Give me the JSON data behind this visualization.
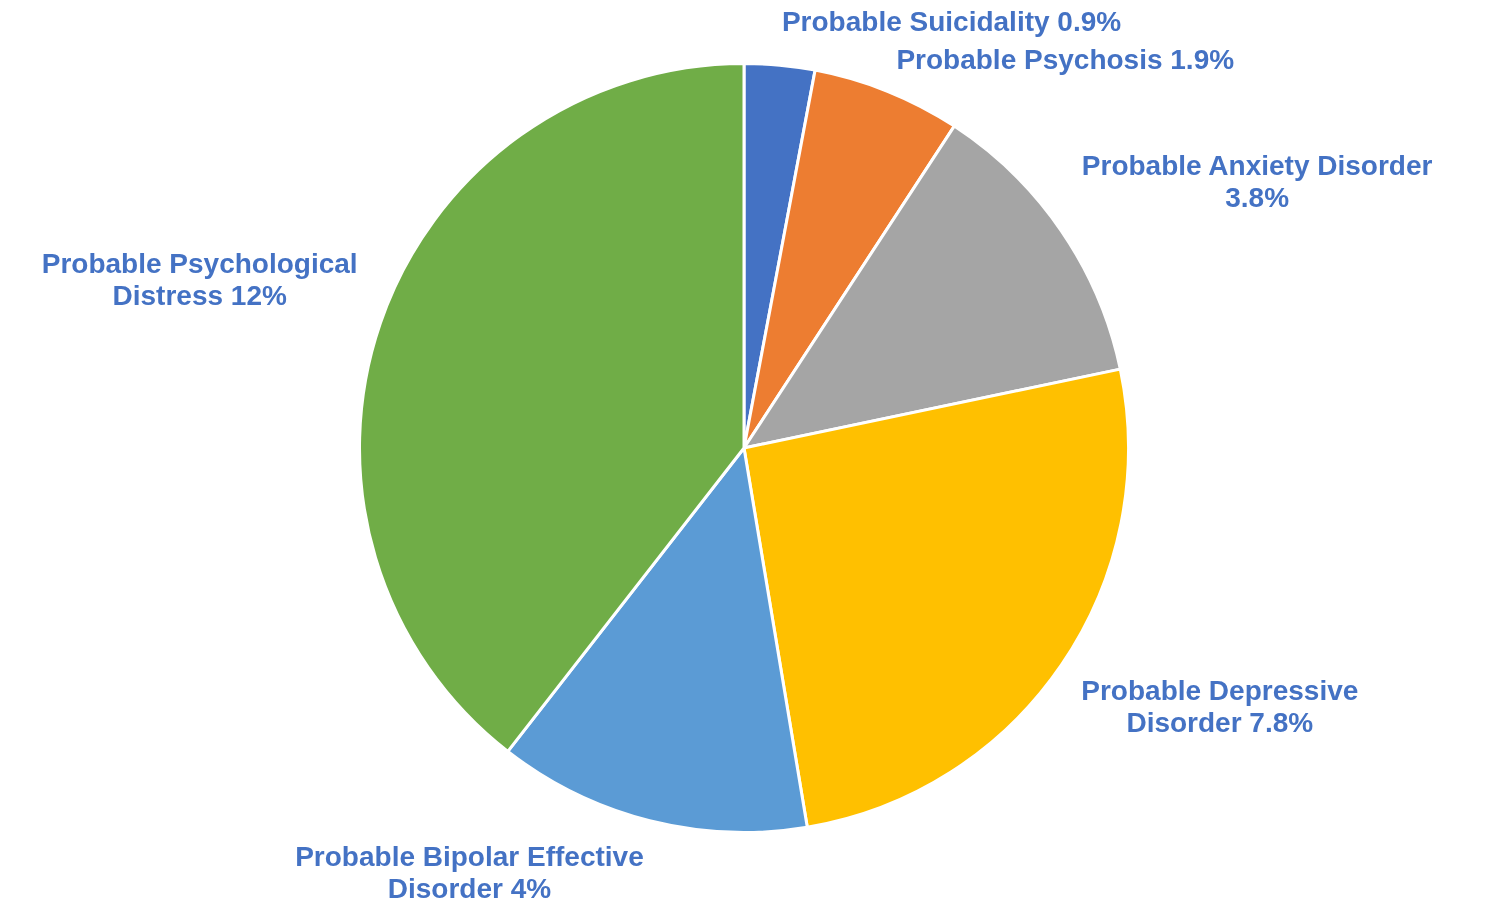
{
  "chart_data": {
    "type": "pie",
    "categories": [
      "Probable Suicidality",
      "Probable Psychosis",
      "Probable Anxiety Disorder",
      "Probable Depressive Disorder",
      "Probable Bipolar Effective Disorder",
      "Probable Psychological Distress"
    ],
    "values": [
      0.9,
      1.9,
      3.8,
      7.8,
      4,
      12
    ],
    "value_labels": [
      "0.9%",
      "1.9%",
      "3.8%",
      "7.8%",
      "4%",
      "12%"
    ],
    "colors": [
      "#4472c4",
      "#ed7d31",
      "#a5a5a5",
      "#ffc000",
      "#5b9bd5",
      "#70ad47"
    ],
    "legend": false
  }
}
